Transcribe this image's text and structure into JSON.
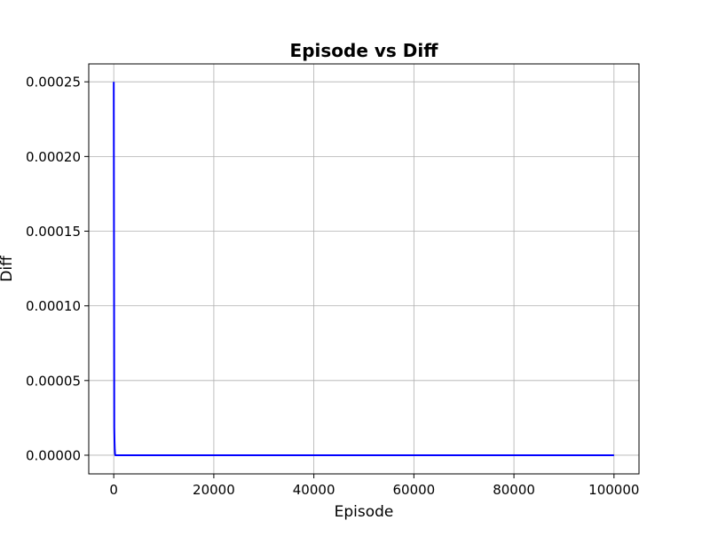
{
  "chart_data": {
    "type": "line",
    "title": "Episode vs Diff",
    "xlabel": "Episode",
    "ylabel": "Diff",
    "xlim": [
      -5000,
      105000
    ],
    "ylim": [
      -1.25e-05,
      0.000262
    ],
    "xticks": [
      0,
      20000,
      40000,
      60000,
      80000,
      100000
    ],
    "xtick_labels": [
      "0",
      "20000",
      "40000",
      "60000",
      "80000",
      "100000"
    ],
    "yticks": [
      0,
      5e-05,
      0.0001,
      0.00015,
      0.0002,
      0.00025
    ],
    "ytick_labels": [
      "0.00000",
      "0.00005",
      "0.00010",
      "0.00015",
      "0.00020",
      "0.00025"
    ],
    "grid": true,
    "series": [
      {
        "color": "#0000ff",
        "x": [
          0,
          100,
          150,
          200,
          250,
          300,
          100000
        ],
        "y": [
          0.00025,
          1.85e-05,
          9.5e-06,
          4e-06,
          1e-06,
          0,
          0
        ]
      }
    ]
  }
}
